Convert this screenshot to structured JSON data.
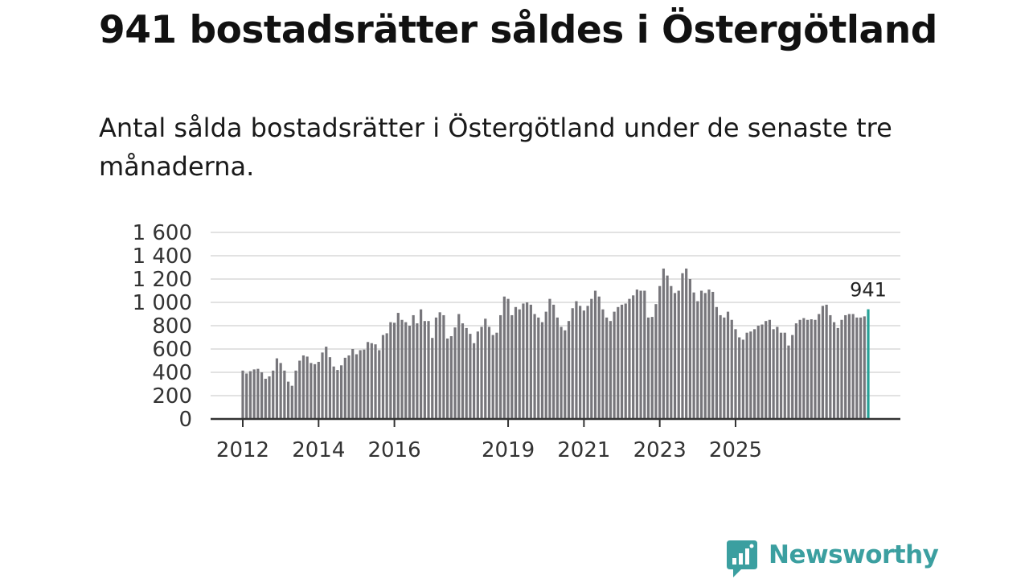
{
  "title": "941 bostadsrätter såldes i Östergötland",
  "subtitle": "Antal sålda bostadsrätter i Östergötland under de senaste tre månaderna.",
  "brand": {
    "name": "Newsworthy",
    "color": "#3b9fa0",
    "icon": "bar-chart-speech-bubble-icon"
  },
  "colors": {
    "bar": "#77767b",
    "highlight": "#27a197",
    "grid": "#d9d9d9",
    "axis": "#333333"
  },
  "chart_data": {
    "type": "bar",
    "title": "Antal sålda bostadsrätter i Östergötland",
    "xlabel": "",
    "ylabel": "",
    "ylim": [
      0,
      1600
    ],
    "yticks": [
      0,
      200,
      400,
      600,
      800,
      1000,
      1200,
      1400,
      1600
    ],
    "ytick_labels": [
      "0",
      "200",
      "400",
      "600",
      "800",
      "1 000",
      "1 200",
      "1 400",
      "1 600"
    ],
    "xticks": [
      {
        "label": "2012",
        "index": 0
      },
      {
        "label": "2014",
        "index": 20
      },
      {
        "label": "2016",
        "index": 40
      },
      {
        "label": "2019",
        "index": 70
      },
      {
        "label": "2021",
        "index": 90
      },
      {
        "label": "2023",
        "index": 110
      },
      {
        "label": "2025",
        "index": 130
      }
    ],
    "grid": true,
    "highlight_label": "941",
    "series": [
      {
        "name": "Antal sålda bostadsrätter",
        "values": [
          415,
          390,
          410,
          425,
          430,
          400,
          345,
          365,
          415,
          520,
          480,
          415,
          320,
          285,
          415,
          500,
          545,
          535,
          480,
          470,
          490,
          570,
          620,
          530,
          450,
          420,
          460,
          525,
          545,
          600,
          555,
          590,
          595,
          660,
          650,
          640,
          590,
          720,
          735,
          830,
          825,
          910,
          850,
          830,
          800,
          890,
          820,
          940,
          840,
          840,
          695,
          870,
          915,
          890,
          690,
          710,
          785,
          900,
          820,
          780,
          730,
          650,
          750,
          790,
          860,
          790,
          720,
          740,
          890,
          1050,
          1030,
          890,
          960,
          940,
          990,
          1000,
          980,
          900,
          870,
          830,
          920,
          1030,
          980,
          870,
          790,
          760,
          840,
          950,
          1010,
          970,
          930,
          970,
          1030,
          1100,
          1050,
          940,
          870,
          840,
          920,
          960,
          980,
          990,
          1030,
          1060,
          1110,
          1100,
          1100,
          870,
          875,
          985,
          1140,
          1290,
          1230,
          1140,
          1080,
          1100,
          1250,
          1290,
          1200,
          1085,
          1010,
          1100,
          1080,
          1110,
          1090,
          960,
          890,
          870,
          920,
          850,
          770,
          700,
          680,
          740,
          750,
          770,
          800,
          810,
          840,
          850,
          770,
          790,
          740,
          740,
          630,
          720,
          820,
          850,
          865,
          850,
          855,
          850,
          900,
          970,
          980,
          890,
          830,
          780,
          850,
          890,
          900,
          900,
          870,
          870,
          880,
          941
        ]
      }
    ]
  }
}
